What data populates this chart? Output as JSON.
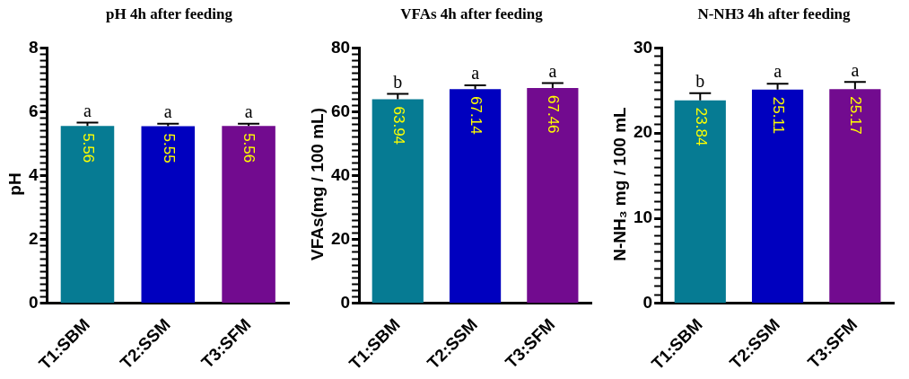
{
  "chart_data": [
    {
      "type": "bar",
      "title": "pH 4h after feeding",
      "ylabel": "pH",
      "categories": [
        "T1:SBM",
        "T2:SSM",
        "T3:SFM"
      ],
      "values": [
        5.56,
        5.55,
        5.56
      ],
      "colors": [
        "#067b93",
        "#0000bf",
        "#720b8f"
      ],
      "errors": [
        [
          5.56,
          5.66
        ],
        [
          5.55,
          5.63
        ],
        [
          5.56,
          5.63
        ]
      ],
      "data_labels": true,
      "ylim": [
        0,
        8
      ],
      "yticks": [
        0,
        {
          "value": 0.2,
          "label": null
        },
        {
          "value": 0.4,
          "label": null
        },
        {
          "value": 0.6,
          "label": null
        },
        {
          "value": 0.8,
          "label": null
        },
        {
          "value": 1,
          "label": null
        },
        {
          "value": 1.2,
          "label": null
        },
        {
          "value": 1.4,
          "label": null
        },
        {
          "value": 1.6,
          "label": null
        },
        {
          "value": 1.8,
          "label": null
        },
        2,
        {
          "value": 2.2,
          "label": null
        },
        {
          "value": 2.4,
          "label": null
        },
        {
          "value": 2.6,
          "label": null
        },
        {
          "value": 2.8,
          "label": null
        },
        {
          "value": 3,
          "label": null
        },
        {
          "value": 3.2,
          "label": null
        },
        {
          "value": 3.4,
          "label": null
        },
        {
          "value": 3.6,
          "label": null
        },
        {
          "value": 3.8,
          "label": null
        },
        4,
        {
          "value": 4.2,
          "label": null
        },
        {
          "value": 4.4,
          "label": null
        },
        {
          "value": 4.6,
          "label": null
        },
        {
          "value": 4.8,
          "label": null
        },
        {
          "value": 5,
          "label": null
        },
        {
          "value": 5.2,
          "label": null
        },
        {
          "value": 5.4,
          "label": null
        },
        {
          "value": 5.6,
          "label": null
        },
        {
          "value": 5.8,
          "label": null
        },
        6,
        {
          "value": 6.2,
          "label": null
        },
        {
          "value": 6.4,
          "label": null
        },
        {
          "value": 6.6,
          "label": null
        },
        {
          "value": 6.8,
          "label": null
        },
        {
          "value": 7,
          "label": null
        },
        {
          "value": 7.2,
          "label": null
        },
        {
          "value": 7.4,
          "label": null
        },
        {
          "value": 7.6,
          "label": null
        },
        {
          "value": 7.8,
          "label": null
        },
        8
      ],
      "grid": false,
      "legend": false,
      "annotations": [
        {
          "text": "a",
          "x": "T1:SBM",
          "y": 5.66
        },
        {
          "text": "a",
          "x": "T2:SSM",
          "y": 5.63
        },
        {
          "text": "a",
          "x": "T3:SFM",
          "y": 5.63
        }
      ]
    },
    {
      "type": "bar",
      "title": "VFAs 4h after feeding",
      "ylabel": "VFAs(mg / 100 mL)",
      "categories": [
        "T1:SBM",
        "T2:SSM",
        "T3:SFM"
      ],
      "values": [
        63.94,
        67.14,
        67.46
      ],
      "colors": [
        "#067b93",
        "#0000bf",
        "#720b8f"
      ],
      "errors": [
        [
          63.94,
          65.6
        ],
        [
          67.14,
          68.3
        ],
        [
          67.46,
          69
        ]
      ],
      "data_labels": true,
      "ylim": [
        0,
        80
      ],
      "yticks": [
        0,
        {
          "value": 2,
          "label": null
        },
        {
          "value": 4,
          "label": null
        },
        {
          "value": 6,
          "label": null
        },
        {
          "value": 8,
          "label": null
        },
        {
          "value": 10,
          "label": null
        },
        {
          "value": 12,
          "label": null
        },
        {
          "value": 14,
          "label": null
        },
        {
          "value": 16,
          "label": null
        },
        {
          "value": 18,
          "label": null
        },
        20,
        {
          "value": 22,
          "label": null
        },
        {
          "value": 24,
          "label": null
        },
        {
          "value": 26,
          "label": null
        },
        {
          "value": 28,
          "label": null
        },
        {
          "value": 30,
          "label": null
        },
        {
          "value": 32,
          "label": null
        },
        {
          "value": 34,
          "label": null
        },
        {
          "value": 36,
          "label": null
        },
        {
          "value": 38,
          "label": null
        },
        40,
        {
          "value": 42,
          "label": null
        },
        {
          "value": 44,
          "label": null
        },
        {
          "value": 46,
          "label": null
        },
        {
          "value": 48,
          "label": null
        },
        {
          "value": 50,
          "label": null
        },
        {
          "value": 52,
          "label": null
        },
        {
          "value": 54,
          "label": null
        },
        {
          "value": 56,
          "label": null
        },
        {
          "value": 58,
          "label": null
        },
        60,
        {
          "value": 62,
          "label": null
        },
        {
          "value": 64,
          "label": null
        },
        {
          "value": 66,
          "label": null
        },
        {
          "value": 68,
          "label": null
        },
        {
          "value": 70,
          "label": null
        },
        {
          "value": 72,
          "label": null
        },
        {
          "value": 74,
          "label": null
        },
        {
          "value": 76,
          "label": null
        },
        {
          "value": 78,
          "label": null
        },
        80
      ],
      "grid": false,
      "legend": false,
      "annotations": [
        {
          "text": "b",
          "x": "T1:SBM",
          "y": 65.6
        },
        {
          "text": "a",
          "x": "T2:SSM",
          "y": 68.3
        },
        {
          "text": "a",
          "x": "T3:SFM",
          "y": 69
        }
      ]
    },
    {
      "type": "bar",
      "title": "N-NH3 4h after feeding",
      "ylabel": "N-NH₃ mg / 100 mL",
      "categories": [
        "T1:SBM",
        "T2:SSM",
        "T3:SFM"
      ],
      "values": [
        23.84,
        25.11,
        25.17
      ],
      "colors": [
        "#067b93",
        "#0000bf",
        "#720b8f"
      ],
      "errors": [
        [
          23.84,
          24.7
        ],
        [
          25.11,
          25.8
        ],
        [
          25.17,
          26
        ]
      ],
      "data_labels": true,
      "ylim": [
        0,
        30
      ],
      "yticks": [
        0,
        {
          "value": 1,
          "label": null
        },
        {
          "value": 2,
          "label": null
        },
        {
          "value": 3,
          "label": null
        },
        {
          "value": 4,
          "label": null
        },
        {
          "value": 5,
          "label": null
        },
        {
          "value": 6,
          "label": null
        },
        {
          "value": 7,
          "label": null
        },
        {
          "value": 8,
          "label": null
        },
        {
          "value": 9,
          "label": null
        },
        10,
        {
          "value": 11,
          "label": null
        },
        {
          "value": 12,
          "label": null
        },
        {
          "value": 13,
          "label": null
        },
        {
          "value": 14,
          "label": null
        },
        {
          "value": 15,
          "label": null
        },
        {
          "value": 16,
          "label": null
        },
        {
          "value": 17,
          "label": null
        },
        {
          "value": 18,
          "label": null
        },
        {
          "value": 19,
          "label": null
        },
        20,
        {
          "value": 21,
          "label": null
        },
        {
          "value": 22,
          "label": null
        },
        {
          "value": 23,
          "label": null
        },
        {
          "value": 24,
          "label": null
        },
        {
          "value": 25,
          "label": null
        },
        {
          "value": 26,
          "label": null
        },
        {
          "value": 27,
          "label": null
        },
        {
          "value": 28,
          "label": null
        },
        {
          "value": 29,
          "label": null
        },
        30
      ],
      "grid": false,
      "legend": false,
      "annotations": [
        {
          "text": "b",
          "x": "T1:SBM",
          "y": 24.7
        },
        {
          "text": "a",
          "x": "T2:SSM",
          "y": 25.8
        },
        {
          "text": "a",
          "x": "T3:SFM",
          "y": 26
        }
      ]
    }
  ]
}
